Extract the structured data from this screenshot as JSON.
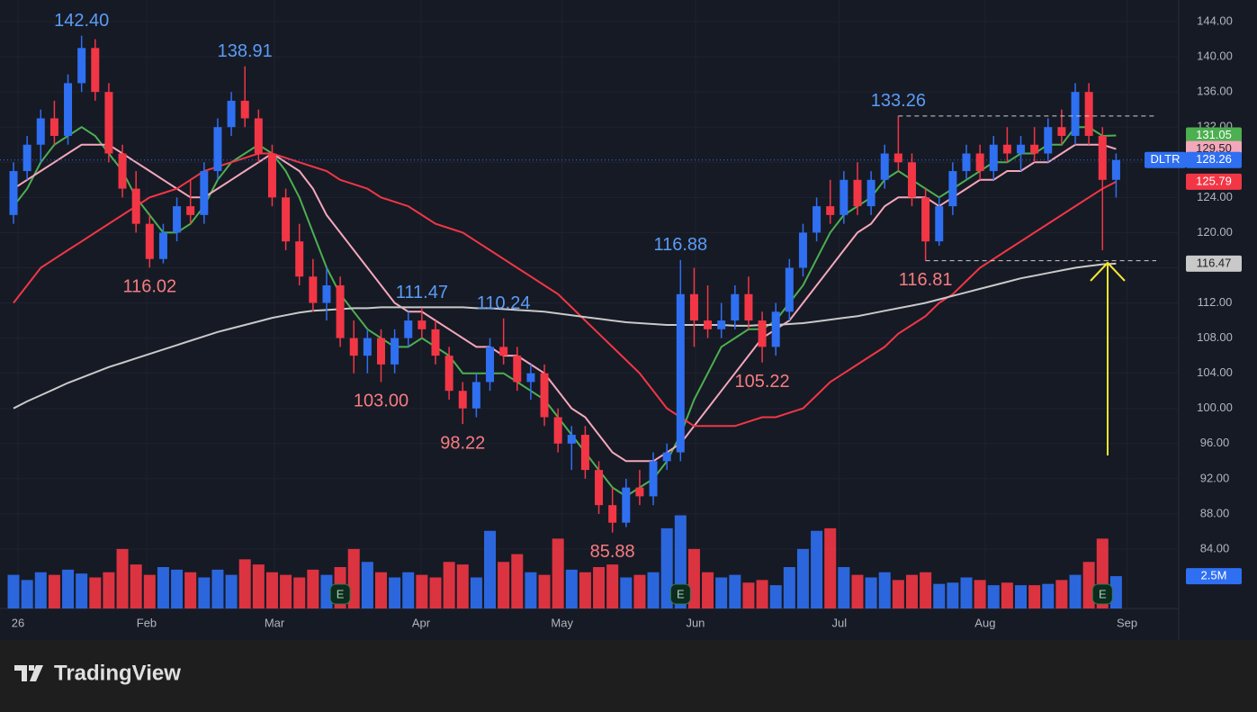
{
  "chart_data": {
    "type": "candlestick",
    "symbol": "DLTR",
    "ohlc": [
      [
        122,
        128,
        121,
        127
      ],
      [
        127,
        131,
        126,
        130
      ],
      [
        130,
        134,
        128,
        133
      ],
      [
        133,
        135,
        130,
        131
      ],
      [
        131,
        138,
        130,
        137
      ],
      [
        137,
        142.4,
        136,
        141
      ],
      [
        141,
        142,
        135,
        136
      ],
      [
        136,
        137,
        128,
        129
      ],
      [
        129,
        130,
        124,
        125
      ],
      [
        125,
        127,
        120,
        121
      ],
      [
        121,
        122,
        116.02,
        117
      ],
      [
        117,
        121,
        116.5,
        120
      ],
      [
        120,
        124,
        119,
        123
      ],
      [
        123,
        126,
        121,
        122
      ],
      [
        122,
        128,
        121,
        127
      ],
      [
        127,
        133,
        126,
        132
      ],
      [
        132,
        136,
        131,
        135
      ],
      [
        135,
        138.91,
        132,
        133
      ],
      [
        133,
        134,
        128,
        129
      ],
      [
        129,
        130,
        123,
        124
      ],
      [
        124,
        125,
        118,
        119
      ],
      [
        119,
        121,
        114,
        115
      ],
      [
        115,
        117,
        111,
        112
      ],
      [
        112,
        116,
        110,
        114
      ],
      [
        114,
        115,
        107,
        108
      ],
      [
        108,
        110,
        104,
        106
      ],
      [
        106,
        109,
        104,
        108
      ],
      [
        108,
        109,
        103,
        105
      ],
      [
        105,
        109,
        104,
        108
      ],
      [
        108,
        111,
        107,
        110
      ],
      [
        110,
        111.47,
        108,
        109
      ],
      [
        109,
        110,
        105,
        106
      ],
      [
        106,
        107,
        101,
        102
      ],
      [
        102,
        103,
        98.22,
        100
      ],
      [
        100,
        104,
        99,
        103
      ],
      [
        103,
        108,
        102,
        107
      ],
      [
        107,
        110.24,
        105,
        106
      ],
      [
        106,
        107,
        102,
        103
      ],
      [
        103,
        105,
        101,
        104
      ],
      [
        104,
        105,
        98,
        99
      ],
      [
        99,
        100,
        95,
        96
      ],
      [
        96,
        98,
        93,
        97
      ],
      [
        97,
        98,
        92,
        93
      ],
      [
        93,
        94,
        88,
        89
      ],
      [
        89,
        91,
        85.88,
        87
      ],
      [
        87,
        92,
        86.5,
        91
      ],
      [
        91,
        93,
        89,
        90
      ],
      [
        90,
        95,
        89,
        94
      ],
      [
        94,
        96,
        93,
        95
      ],
      [
        95,
        116.88,
        94,
        113
      ],
      [
        113,
        116,
        107,
        110
      ],
      [
        110,
        114,
        108,
        109
      ],
      [
        109,
        112,
        108,
        110
      ],
      [
        110,
        114,
        109,
        113
      ],
      [
        113,
        115,
        109,
        110
      ],
      [
        110,
        111,
        105.22,
        107
      ],
      [
        107,
        112,
        106,
        111
      ],
      [
        111,
        117,
        110,
        116
      ],
      [
        116,
        121,
        115,
        120
      ],
      [
        120,
        124,
        119,
        123
      ],
      [
        123,
        126,
        121,
        122
      ],
      [
        122,
        127,
        121,
        126
      ],
      [
        126,
        128,
        122,
        123
      ],
      [
        123,
        127,
        122,
        126
      ],
      [
        126,
        130,
        125,
        129
      ],
      [
        129,
        133.26,
        127,
        128
      ],
      [
        128,
        129,
        123,
        124
      ],
      [
        124,
        125,
        116.81,
        119
      ],
      [
        119,
        124,
        118.5,
        123
      ],
      [
        123,
        128,
        122,
        127
      ],
      [
        127,
        130,
        126,
        129
      ],
      [
        129,
        130,
        126,
        127
      ],
      [
        127,
        131,
        126,
        130
      ],
      [
        130,
        132,
        128,
        129
      ],
      [
        129,
        131,
        127,
        130
      ],
      [
        130,
        132,
        128,
        129
      ],
      [
        129,
        133,
        128,
        132
      ],
      [
        132,
        134,
        130,
        131
      ],
      [
        131,
        137,
        130,
        136
      ],
      [
        136,
        137,
        130,
        131
      ],
      [
        131,
        132,
        118,
        126
      ],
      [
        126,
        129,
        124,
        128.26
      ]
    ],
    "up_color": "#2f6ff2",
    "down_color": "#f23645",
    "volumes": [
      2.6,
      2.2,
      2.8,
      2.6,
      3.0,
      2.7,
      2.4,
      2.8,
      4.6,
      3.4,
      2.6,
      3.2,
      3.0,
      2.8,
      2.4,
      3.0,
      2.6,
      3.8,
      3.4,
      2.8,
      2.6,
      2.4,
      3.0,
      2.6,
      3.2,
      4.6,
      3.6,
      2.8,
      2.4,
      2.8,
      2.6,
      2.4,
      3.6,
      3.4,
      2.4,
      6.0,
      3.6,
      4.2,
      2.8,
      2.6,
      5.4,
      3.0,
      2.8,
      3.2,
      3.4,
      2.4,
      2.6,
      2.8,
      6.2,
      7.2,
      4.6,
      2.8,
      2.4,
      2.6,
      2.0,
      2.2,
      1.8,
      3.2,
      4.6,
      6.0,
      6.2,
      3.2,
      2.6,
      2.4,
      2.8,
      2.2,
      2.6,
      2.8,
      1.9,
      2.0,
      2.4,
      2.2,
      1.8,
      2.0,
      1.8,
      1.8,
      1.9,
      2.2,
      2.6,
      3.6,
      5.4,
      2.5
    ],
    "volume_label": "2.5M",
    "volume_ylim": [
      0,
      8
    ],
    "series": [
      {
        "color": "#4caf50",
        "price_label": "131.05",
        "values": [
          123,
          125,
          128,
          130,
          131,
          132,
          131,
          129,
          127,
          124,
          122,
          120,
          120,
          121,
          123,
          126,
          128,
          129,
          130,
          129,
          127,
          124,
          120,
          116,
          113,
          111,
          109,
          108,
          107,
          107,
          108,
          107,
          106,
          104,
          104,
          104,
          104,
          103,
          102,
          101,
          99,
          97,
          95,
          93,
          91,
          90,
          91,
          92,
          94,
          97,
          101,
          104,
          107,
          108,
          109,
          109,
          110,
          112,
          114,
          117,
          120,
          122,
          123,
          124,
          126,
          127,
          126,
          125,
          124,
          125,
          126,
          127,
          128,
          128,
          129,
          129,
          130,
          130,
          132,
          132,
          131,
          131.05
        ]
      },
      {
        "color": "#f4a7bb",
        "price_label": "129.50",
        "values": [
          125,
          126,
          127,
          128,
          129,
          130,
          130,
          130,
          129,
          128,
          127,
          126,
          125,
          124,
          124,
          125,
          126,
          127,
          128,
          129,
          128,
          127,
          125,
          122,
          120,
          118,
          116,
          114,
          112,
          111,
          111,
          110,
          109,
          108,
          107,
          107,
          106,
          106,
          105,
          104,
          102,
          100,
          99,
          97,
          95,
          94,
          94,
          94,
          95,
          96,
          98,
          100,
          102,
          104,
          106,
          108,
          109,
          110,
          112,
          114,
          116,
          118,
          120,
          121,
          123,
          124,
          124,
          124,
          123,
          124,
          125,
          126,
          126,
          127,
          127,
          128,
          128,
          129,
          130,
          130,
          130,
          129.5
        ]
      },
      {
        "color": "#f23645",
        "price_label": "125.79",
        "values": [
          112,
          114,
          116,
          117,
          118,
          119,
          120,
          121,
          122,
          123,
          124,
          124.5,
          125,
          126,
          127,
          127.5,
          128,
          128.5,
          129,
          129,
          128.5,
          128,
          127.5,
          127,
          126,
          125.5,
          125,
          124,
          123.5,
          123,
          122,
          121,
          120.5,
          120,
          119,
          118,
          117,
          116,
          115,
          114,
          113,
          111.5,
          110,
          108.5,
          107,
          105.5,
          104,
          102,
          100,
          99,
          98,
          98,
          98,
          98,
          98.5,
          99,
          99,
          99.5,
          100,
          101.5,
          103,
          104,
          105,
          106,
          107,
          108.5,
          109.5,
          110.5,
          112,
          113,
          114.5,
          116,
          117,
          118,
          119,
          120,
          121,
          122,
          123,
          124,
          125,
          125.79
        ]
      },
      {
        "color": "#c9c9c9",
        "price_label": "116.47",
        "values": [
          100,
          100.8,
          101.5,
          102.2,
          102.9,
          103.5,
          104.1,
          104.7,
          105.2,
          105.7,
          106.2,
          106.7,
          107.2,
          107.7,
          108.2,
          108.7,
          109.1,
          109.5,
          109.9,
          110.3,
          110.6,
          110.9,
          111.1,
          111.2,
          111.3,
          111.4,
          111.4,
          111.5,
          111.5,
          111.5,
          111.5,
          111.5,
          111.5,
          111.5,
          111.4,
          111.4,
          111.3,
          111.2,
          111.1,
          111,
          110.8,
          110.6,
          110.4,
          110.2,
          110,
          109.8,
          109.7,
          109.6,
          109.5,
          109.5,
          109.5,
          109.5,
          109.5,
          109.4,
          109.4,
          109.5,
          109.5,
          109.6,
          109.7,
          109.9,
          110.1,
          110.3,
          110.5,
          110.8,
          111.1,
          111.4,
          111.7,
          112,
          112.4,
          112.8,
          113.2,
          113.6,
          114,
          114.4,
          114.8,
          115.1,
          115.4,
          115.7,
          116,
          116.2,
          116.4,
          116.47
        ]
      }
    ],
    "annotations": [
      {
        "candle": 5,
        "value": 142.4,
        "label": "142.40"
      },
      {
        "candle": 10,
        "value": 116.02,
        "label": "116.02"
      },
      {
        "candle": 17,
        "value": 138.91,
        "label": "138.91"
      },
      {
        "candle": 27,
        "value": 103,
        "label": "103.00"
      },
      {
        "candle": 30,
        "value": 111.47,
        "label": "111.47"
      },
      {
        "candle": 33,
        "value": 98.22,
        "label": "98.22"
      },
      {
        "candle": 36,
        "value": 110.24,
        "label": "110.24"
      },
      {
        "candle": 44,
        "value": 85.88,
        "label": "85.88"
      },
      {
        "candle": 49,
        "value": 116.88,
        "label": "116.88"
      },
      {
        "candle": 55,
        "value": 105.22,
        "label": "105.22"
      },
      {
        "candle": 65,
        "value": 133.26,
        "label": "133.26",
        "extend": true
      },
      {
        "candle": 67,
        "value": 116.81,
        "label": "116.81",
        "extend": true
      }
    ],
    "earnings": [
      {
        "candle": 24,
        "label": "E"
      },
      {
        "candle": 49,
        "label": "E"
      },
      {
        "candle": 80,
        "label": "E"
      }
    ],
    "xlim": [
      -0.2,
      85.6
    ],
    "xticks": [
      {
        "value": 0.33,
        "label": "26"
      },
      {
        "value": 9.78,
        "label": "Feb"
      },
      {
        "value": 19.17,
        "label": "Mar"
      },
      {
        "value": 29.94,
        "label": "Apr"
      },
      {
        "value": 40.3,
        "label": "May"
      },
      {
        "value": 50.1,
        "label": "Jun"
      },
      {
        "value": 60.67,
        "label": "Jul"
      },
      {
        "value": 71.38,
        "label": "Aug"
      },
      {
        "value": 81.8,
        "label": "Sep"
      }
    ],
    "ylim": [
      73.76,
      146.46
    ],
    "yticks": [
      {
        "value": 84,
        "label": "84.00"
      },
      {
        "value": 88,
        "label": "88.00"
      },
      {
        "value": 92,
        "label": "92.00"
      },
      {
        "value": 96,
        "label": "96.00"
      },
      {
        "value": 100,
        "label": "100.00"
      },
      {
        "value": 104,
        "label": "104.00"
      },
      {
        "value": 108,
        "label": "108.00"
      },
      {
        "value": 112,
        "label": "112.00"
      },
      {
        "value": 116,
        "label": "116.00"
      },
      {
        "value": 120,
        "label": "120.00"
      },
      {
        "value": 124,
        "label": "124.00"
      },
      {
        "value": 128,
        "label": "128.00"
      },
      {
        "value": 132,
        "label": "132.00"
      },
      {
        "value": 136,
        "label": "136.00"
      },
      {
        "value": 140,
        "label": "140.00"
      },
      {
        "value": 144,
        "label": "144.00"
      }
    ],
    "grid": true
  },
  "footer": {
    "brand": "TradingView"
  }
}
